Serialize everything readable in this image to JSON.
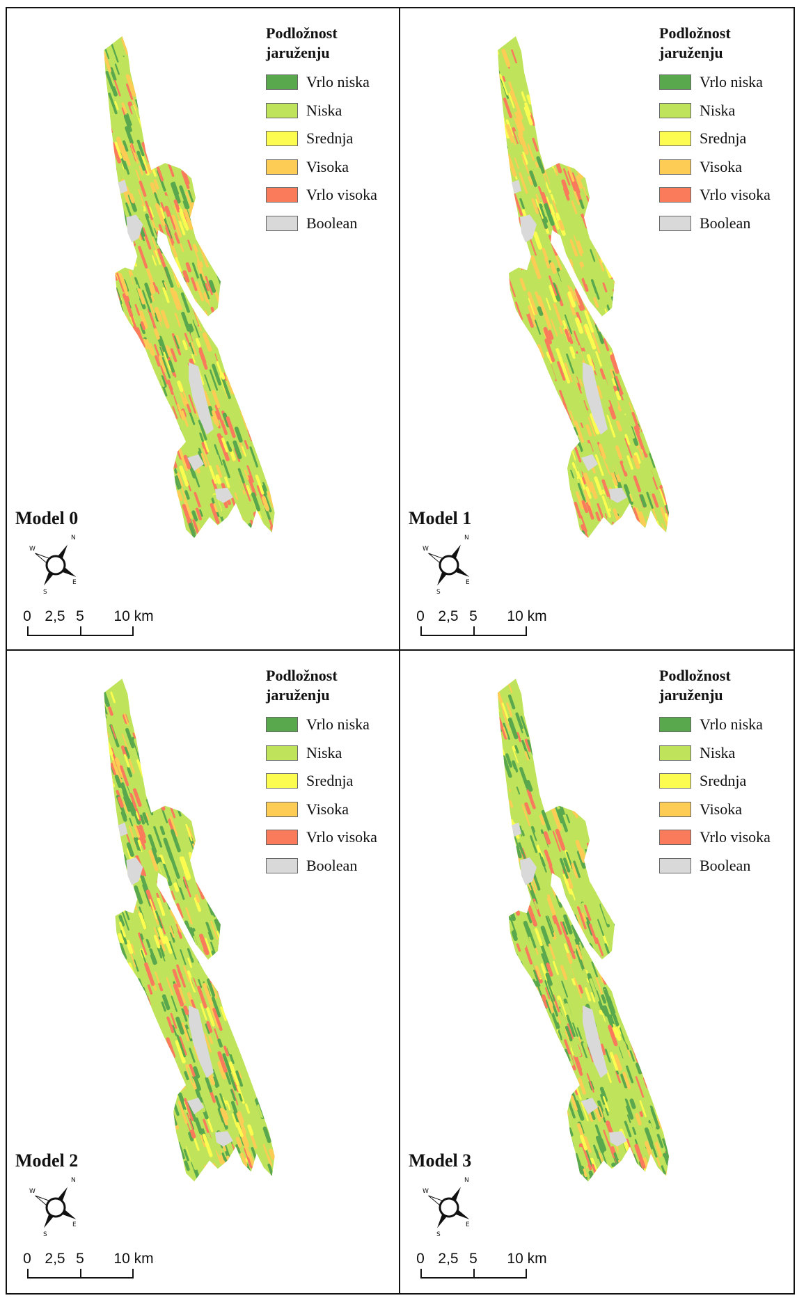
{
  "legend": {
    "title_line1": "Podložnost",
    "title_line2": "jaruženju",
    "classes": [
      {
        "label": "Vrlo niska",
        "color": "#5aa84e"
      },
      {
        "label": "Niska",
        "color": "#bfe35a"
      },
      {
        "label": "Srednja",
        "color": "#fcfb4f"
      },
      {
        "label": "Visoka",
        "color": "#fdcc55"
      },
      {
        "label": "Vrlo visoka",
        "color": "#fa7a5c"
      },
      {
        "label": "Boolean",
        "color": "#d9d9d9"
      }
    ]
  },
  "scale": {
    "ticks": [
      "0",
      "2,5",
      "5",
      "10 km"
    ]
  },
  "north_arrow": {
    "n": "N",
    "s": "S",
    "e": "E",
    "w": "W"
  },
  "panels": [
    {
      "label": "Model 0",
      "class_mix": [
        0.2,
        0.22,
        0.08,
        0.26,
        0.24
      ]
    },
    {
      "label": "Model 1",
      "class_mix": [
        0.06,
        0.4,
        0.12,
        0.22,
        0.2
      ]
    },
    {
      "label": "Model 2",
      "class_mix": [
        0.3,
        0.28,
        0.1,
        0.17,
        0.15
      ]
    },
    {
      "label": "Model 3",
      "class_mix": [
        0.34,
        0.3,
        0.1,
        0.14,
        0.12
      ]
    }
  ]
}
